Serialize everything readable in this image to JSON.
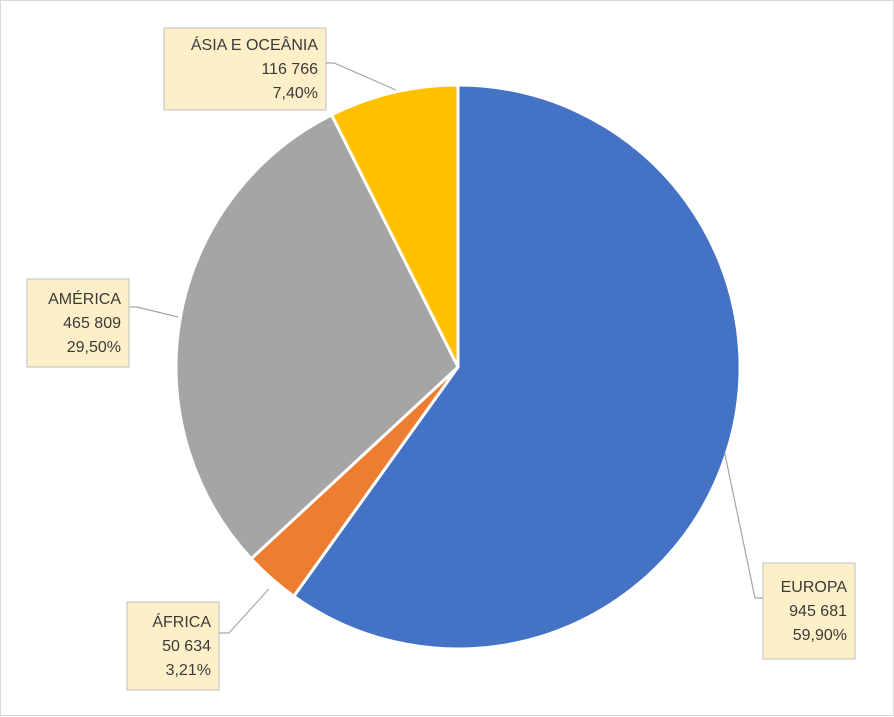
{
  "chart_data": {
    "type": "pie",
    "slices": [
      {
        "name": "EUROPA",
        "value": 945681,
        "value_label": "945 681",
        "percent_label": "59,90%",
        "color": "#4472c4"
      },
      {
        "name": "ÁFRICA",
        "value": 50634,
        "value_label": "50 634",
        "percent_label": "3,21%",
        "color": "#ed7d31"
      },
      {
        "name": "AMÉRICA",
        "value": 465809,
        "value_label": "465 809",
        "percent_label": "29,50%",
        "color": "#a5a5a5"
      },
      {
        "name": "ÁSIA E OCEÂNIA",
        "value": 116766,
        "value_label": "116 766",
        "percent_label": "7,40%",
        "color": "#ffc000"
      }
    ],
    "start_angle": "12 o'clock",
    "direction": "clockwise",
    "legend": "none",
    "data_labels": "callout boxes"
  }
}
